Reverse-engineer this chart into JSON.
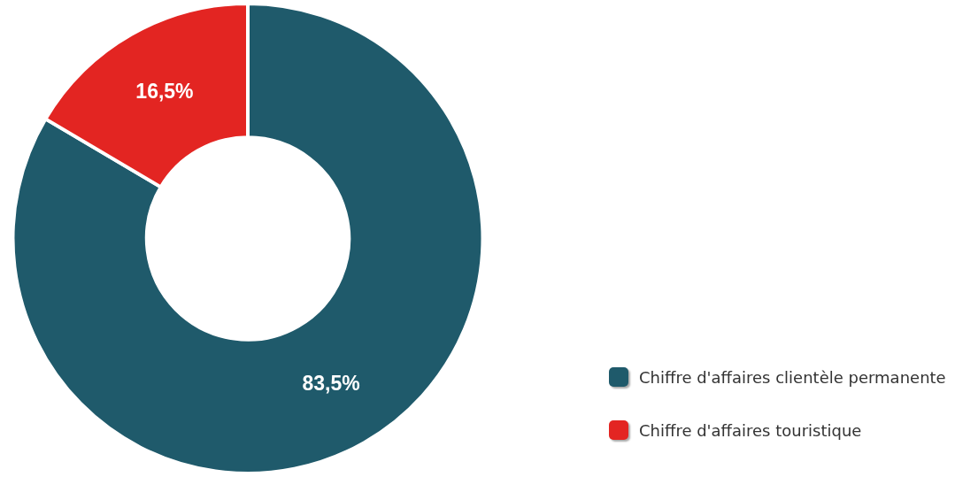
{
  "chart_data": {
    "type": "donut",
    "categories": [
      "Chiffre d'affaires clientèle permanente",
      "Chiffre d'affaires touristique"
    ],
    "values": [
      83.5,
      16.5
    ],
    "colors": [
      "#1f5a6b",
      "#e32522"
    ],
    "value_labels": [
      "83,5%",
      "16,5%"
    ],
    "legend": "bottom right"
  }
}
